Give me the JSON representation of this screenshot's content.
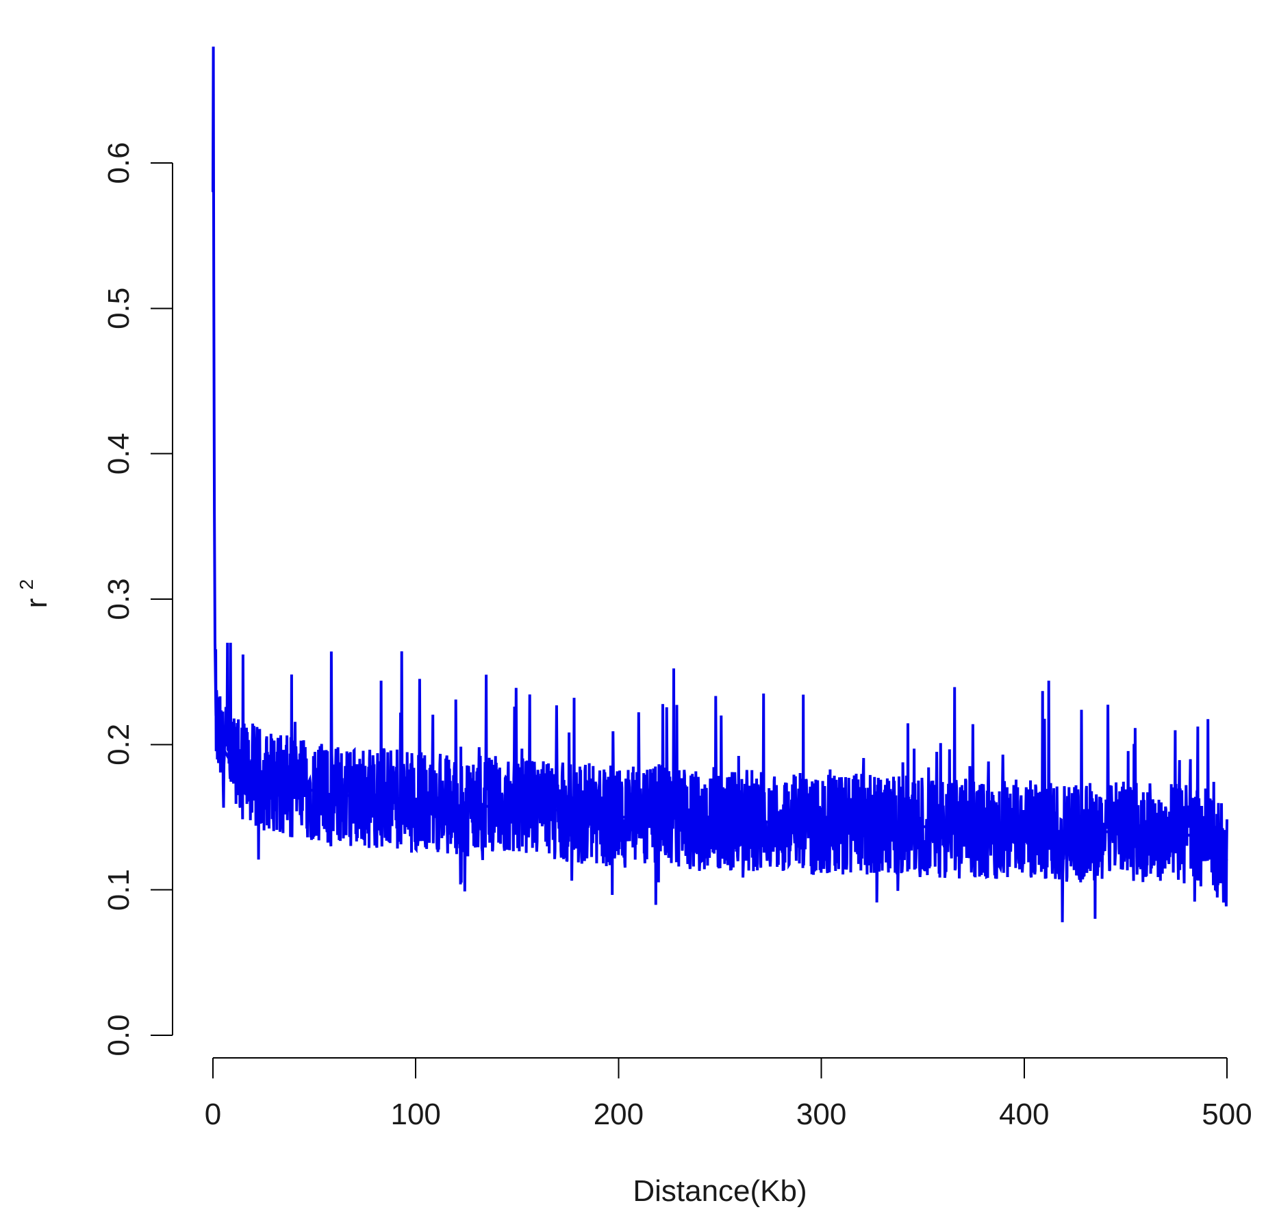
{
  "chart_data": {
    "type": "line",
    "title": "",
    "xlabel": "Distance(Kb)",
    "ylabel_base": "r",
    "ylabel_superscript": "2",
    "xlim": [
      0,
      500
    ],
    "ylim": [
      0,
      0.6
    ],
    "xticks": [
      "0",
      "100",
      "200",
      "300",
      "400",
      "500"
    ],
    "yticks": [
      "0.0",
      "0.1",
      "0.2",
      "0.3",
      "0.4",
      "0.5",
      "0.6"
    ],
    "grid": false,
    "legend": "none",
    "line_color": "#0000ee",
    "series": [
      {
        "x": [
          0,
          0.2,
          0.4,
          0.7,
          1,
          1.5,
          2,
          3,
          4,
          5,
          6,
          8,
          10,
          12,
          15,
          18,
          20,
          25,
          30,
          35,
          40,
          45,
          50,
          60,
          70,
          80,
          90,
          100,
          110,
          120,
          130,
          140,
          150,
          160,
          170,
          180,
          190,
          200,
          220,
          240,
          260,
          280,
          300,
          320,
          340,
          360,
          380,
          400,
          420,
          440,
          460,
          480,
          490,
          495,
          500
        ],
        "y": [
          0.58,
          0.68,
          0.52,
          0.36,
          0.27,
          0.22,
          0.21,
          0.2,
          0.2,
          0.19,
          0.195,
          0.19,
          0.185,
          0.185,
          0.18,
          0.18,
          0.18,
          0.175,
          0.175,
          0.172,
          0.17,
          0.17,
          0.168,
          0.165,
          0.165,
          0.163,
          0.162,
          0.16,
          0.16,
          0.158,
          0.158,
          0.157,
          0.156,
          0.155,
          0.155,
          0.153,
          0.152,
          0.15,
          0.15,
          0.148,
          0.148,
          0.146,
          0.145,
          0.145,
          0.144,
          0.143,
          0.142,
          0.142,
          0.14,
          0.14,
          0.14,
          0.138,
          0.135,
          0.13,
          0.12
        ]
      }
    ]
  }
}
